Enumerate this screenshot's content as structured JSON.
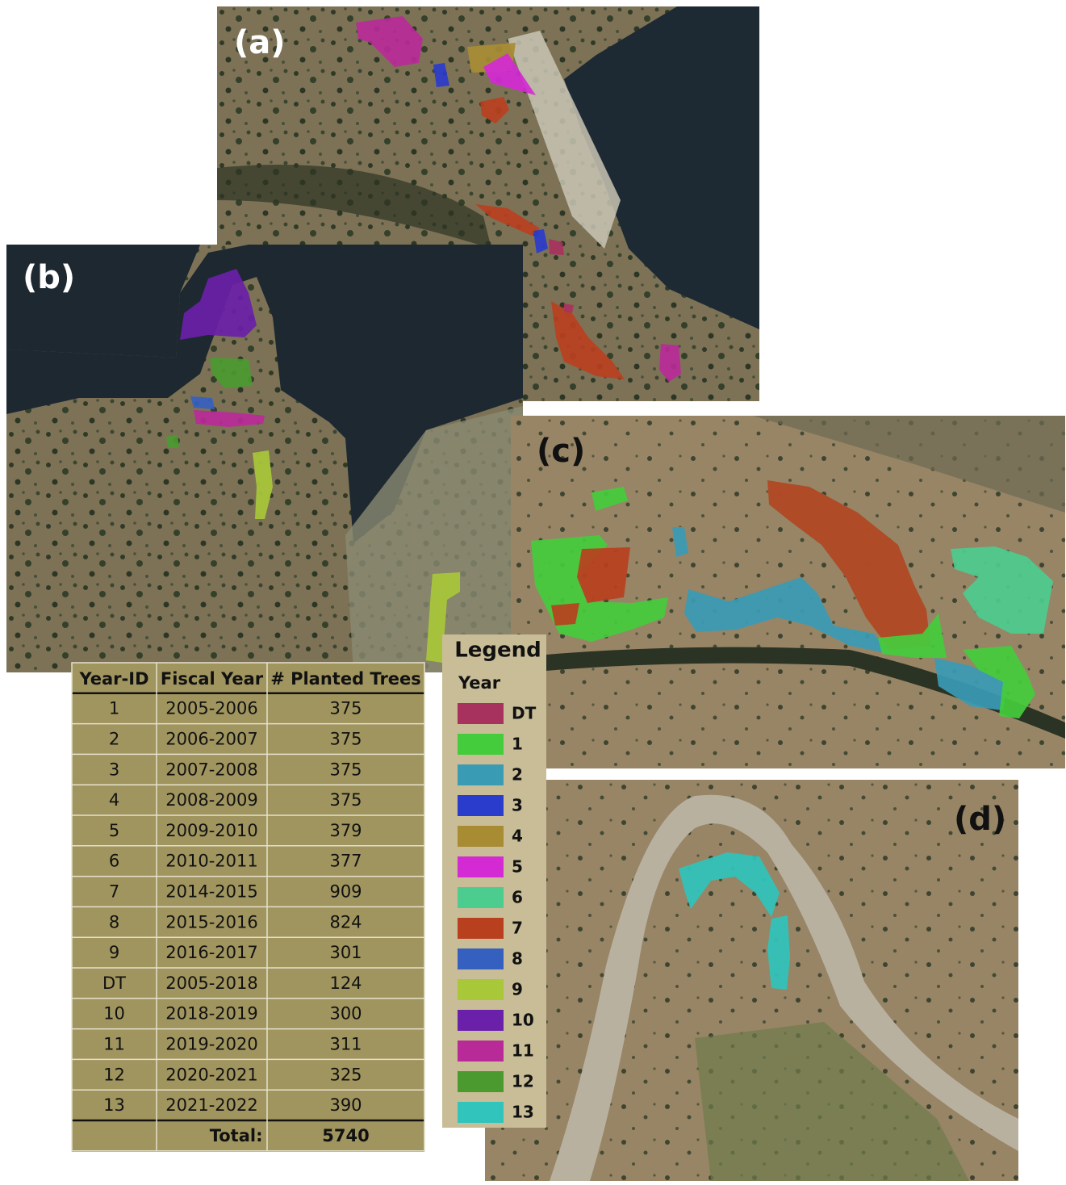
{
  "panels": [
    {
      "label": "(a)"
    },
    {
      "label": "(b)"
    },
    {
      "label": "(c)"
    },
    {
      "label": "(d)"
    }
  ],
  "table": {
    "headers": [
      "Year-ID",
      "Fiscal Year",
      "# Planted Trees"
    ],
    "rows": [
      [
        "1",
        "2005-2006",
        375
      ],
      [
        "2",
        "2006-2007",
        375
      ],
      [
        "3",
        "2007-2008",
        375
      ],
      [
        "4",
        "2008-2009",
        375
      ],
      [
        "5",
        "2009-2010",
        379
      ],
      [
        "6",
        "2010-2011",
        377
      ],
      [
        "7",
        "2014-2015",
        909
      ],
      [
        "8",
        "2015-2016",
        824
      ],
      [
        "9",
        "2016-2017",
        301
      ],
      [
        "DT",
        "2005-2018",
        124
      ],
      [
        "10",
        "2018-2019",
        300
      ],
      [
        "11",
        "2019-2020",
        311
      ],
      [
        "12",
        "2020-2021",
        325
      ],
      [
        "13",
        "2021-2022",
        390
      ]
    ],
    "total": {
      "label": "Total:",
      "value": 5740
    }
  },
  "legend": {
    "title": "Legend",
    "subtitle": "Year",
    "items": [
      {
        "label": "DT",
        "color": "#a8325e"
      },
      {
        "label": "1",
        "color": "#44cc3c"
      },
      {
        "label": "2",
        "color": "#3a9bb5"
      },
      {
        "label": "3",
        "color": "#2a3ccc"
      },
      {
        "label": "4",
        "color": "#a88c34"
      },
      {
        "label": "5",
        "color": "#d42ad4"
      },
      {
        "label": "6",
        "color": "#4ccc8e"
      },
      {
        "label": "7",
        "color": "#b8401e"
      },
      {
        "label": "8",
        "color": "#3560c0"
      },
      {
        "label": "9",
        "color": "#a8c83a"
      },
      {
        "label": "10",
        "color": "#6a20a8"
      },
      {
        "label": "11",
        "color": "#b82a98"
      },
      {
        "label": "12",
        "color": "#4a9a30"
      },
      {
        "label": "13",
        "color": "#30c4bc"
      }
    ]
  }
}
